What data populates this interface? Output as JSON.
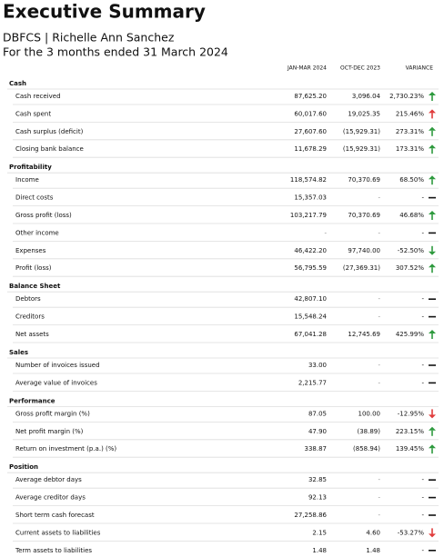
{
  "header": {
    "title": "Executive Summary",
    "subtitle": "DBFCS | Richelle Ann Sanchez",
    "period": "For the 3 months ended 31 March 2024"
  },
  "table": {
    "columns": [
      "JAN-MAR 2024",
      "OCT-DEC 2023",
      "VARIANCE"
    ],
    "sections": [
      {
        "name": "Cash",
        "rows": [
          {
            "label": "Cash received",
            "values": [
              "87,625.20",
              "3,096.04",
              "2,730.23%"
            ]
          },
          {
            "label": "Cash spent",
            "values": [
              "60,017.60",
              "19,025.35",
              "215.46%"
            ]
          },
          {
            "label": "Cash surplus (deficit)",
            "values": [
              "27,607.60",
              "(15,929.31)",
              "273.31%"
            ]
          },
          {
            "label": "Closing bank balance",
            "values": [
              "11,678.29",
              "(15,929.31)",
              "173.31%"
            ]
          }
        ]
      },
      {
        "name": "Profitability",
        "rows": [
          {
            "label": "Income",
            "values": [
              "118,574.82",
              "70,370.69",
              "68.50%"
            ]
          },
          {
            "label": "Direct costs",
            "values": [
              "15,357.03",
              "-",
              "-"
            ]
          },
          {
            "label": "Gross profit (loss)",
            "values": [
              "103,217.79",
              "70,370.69",
              "46.68%"
            ]
          },
          {
            "label": "Other income",
            "values": [
              "-",
              "-",
              "-"
            ]
          },
          {
            "label": "Expenses",
            "values": [
              "46,422.20",
              "97,740.00",
              "-52.50%"
            ]
          },
          {
            "label": "Profit (loss)",
            "values": [
              "56,795.59",
              "(27,369.31)",
              "307.52%"
            ]
          }
        ]
      },
      {
        "name": "Balance Sheet",
        "rows": [
          {
            "label": "Debtors",
            "values": [
              "42,807.10",
              "-",
              "-"
            ]
          },
          {
            "label": "Creditors",
            "values": [
              "15,548.24",
              "-",
              "-"
            ]
          },
          {
            "label": "Net assets",
            "values": [
              "67,041.28",
              "12,745.69",
              "425.99%"
            ]
          }
        ]
      },
      {
        "name": "Sales",
        "rows": [
          {
            "label": "Number of invoices issued",
            "values": [
              "33.00",
              "-",
              "-"
            ]
          },
          {
            "label": "Average value of invoices",
            "values": [
              "2,215.77",
              "-",
              "-"
            ]
          }
        ]
      },
      {
        "name": "Performance",
        "rows": [
          {
            "label": "Gross profit margin (%)",
            "values": [
              "87.05",
              "100.00",
              "-12.95%"
            ]
          },
          {
            "label": "Net profit margin (%)",
            "values": [
              "47.90",
              "(38.89)",
              "223.15%"
            ]
          },
          {
            "label": "Return on investment (p.a.) (%)",
            "values": [
              "338.87",
              "(858.94)",
              "139.45%"
            ]
          }
        ]
      },
      {
        "name": "Position",
        "rows": [
          {
            "label": "Average debtor days",
            "values": [
              "32.85",
              "-",
              "-"
            ]
          },
          {
            "label": "Average creditor days",
            "values": [
              "92.13",
              "-",
              "-"
            ]
          },
          {
            "label": "Short term cash forecast",
            "values": [
              "27,258.86",
              "-",
              "-"
            ]
          },
          {
            "label": "Current assets to liabilities",
            "values": [
              "2.15",
              "4.60",
              "-53.27%"
            ]
          },
          {
            "label": "Term assets to liabilities",
            "values": [
              "1.48",
              "1.48",
              "-"
            ]
          }
        ]
      }
    ]
  }
}
